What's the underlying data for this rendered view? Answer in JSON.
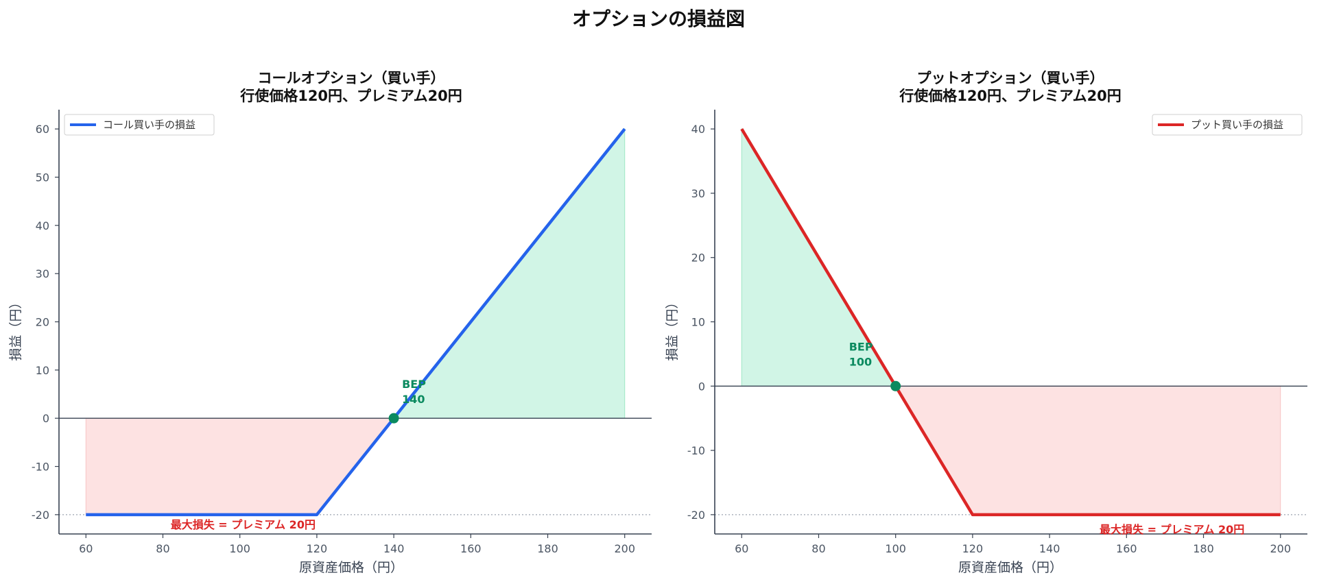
{
  "figure": {
    "title": "オプションの損益図"
  },
  "colors": {
    "call_line": "#2563eb",
    "put_line": "#dc2626",
    "profit_fill": "#d1f5e6",
    "loss_fill": "#fde2e2",
    "bep": "#0b8a5f",
    "loss_text": "#dc2626",
    "axis": "#374151",
    "zero_line": "#374151",
    "dotted": "#9ca3af"
  },
  "chart_data": [
    {
      "type": "line",
      "title": "コールオプション（買い手）",
      "subtitle": "行使価格120円、プレミアム20円",
      "xlabel": "原資産価格（円）",
      "ylabel": "損益（円）",
      "xlim": [
        53,
        207
      ],
      "ylim": [
        -24,
        64
      ],
      "xticks": [
        60,
        80,
        100,
        120,
        140,
        160,
        180,
        200
      ],
      "yticks": [
        -20,
        -10,
        0,
        10,
        20,
        30,
        40,
        50,
        60
      ],
      "xtick_labels": [
        "60",
        "80",
        "100",
        "120",
        "140",
        "160",
        "180",
        "200"
      ],
      "ytick_labels": [
        "-20",
        "-10",
        "0",
        "10",
        "20",
        "30",
        "40",
        "50",
        "60"
      ],
      "legend": {
        "label": "コール買い手の損益",
        "position": "top-left"
      },
      "series": [
        {
          "name": "コール買い手の損益",
          "x": [
            60,
            120,
            200
          ],
          "y": [
            -20,
            -20,
            60
          ]
        }
      ],
      "bep": {
        "x": 140,
        "y": 0,
        "label_line1": "BEP",
        "label_line2": "140"
      },
      "max_loss": {
        "y": -20,
        "label": "最大損失 = プレミアム 20円"
      },
      "grid": false
    },
    {
      "type": "line",
      "title": "プットオプション（買い手）",
      "subtitle": "行使価格120円、プレミアム20円",
      "xlabel": "原資産価格（円）",
      "ylabel": "損益（円）",
      "xlim": [
        53,
        207
      ],
      "ylim": [
        -23,
        43
      ],
      "xticks": [
        60,
        80,
        100,
        120,
        140,
        160,
        180,
        200
      ],
      "yticks": [
        -20,
        -10,
        0,
        10,
        20,
        30,
        40
      ],
      "xtick_labels": [
        "60",
        "80",
        "100",
        "120",
        "140",
        "160",
        "180",
        "200"
      ],
      "ytick_labels": [
        "-20",
        "-10",
        "0",
        "10",
        "20",
        "30",
        "40"
      ],
      "legend": {
        "label": "プット買い手の損益",
        "position": "top-right"
      },
      "series": [
        {
          "name": "プット買い手の損益",
          "x": [
            60,
            120,
            200
          ],
          "y": [
            40,
            -20,
            -20
          ]
        }
      ],
      "bep": {
        "x": 100,
        "y": 0,
        "label_line1": "BEP",
        "label_line2": "100"
      },
      "max_loss": {
        "y": -20,
        "label": "最大損失 = プレミアム 20円"
      },
      "grid": false
    }
  ]
}
